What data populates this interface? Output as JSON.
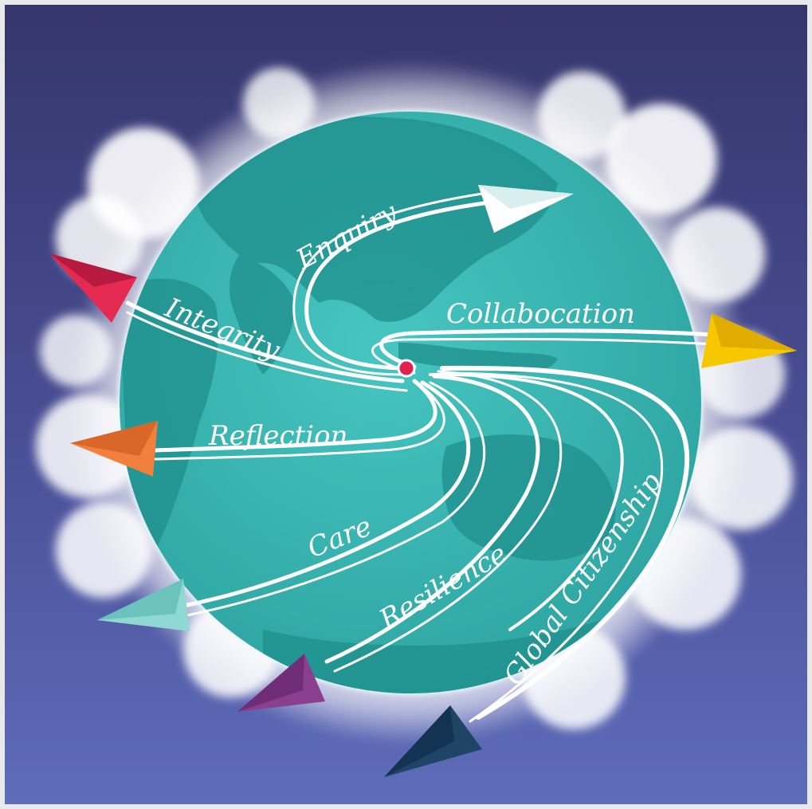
{
  "colors": {
    "sky_top": "#34356b",
    "sky_bottom": "#5b68b6",
    "globe": "#39b7b3",
    "land": "#1f8f8c",
    "center_dot": "#e2204f",
    "plane_enquiry": "#ffffff",
    "plane_integrity": "#e52a52",
    "plane_collaboration": "#f7c800",
    "plane_reflection": "#f0803c",
    "plane_care": "#8fd8d3",
    "plane_resilience": "#8a3f8f",
    "plane_global_citizenship": "#1e4466"
  },
  "labels": {
    "enquiry": "Enquiry",
    "integrity": "Integrity",
    "collaboration": "Collabocation",
    "reflection": "Reflection",
    "care": "Care",
    "resilience": "Resilience",
    "global_citizenship": "Global Citizenship"
  },
  "icons": [
    "paper-plane-icon",
    "globe-icon",
    "cloud-icon"
  ]
}
